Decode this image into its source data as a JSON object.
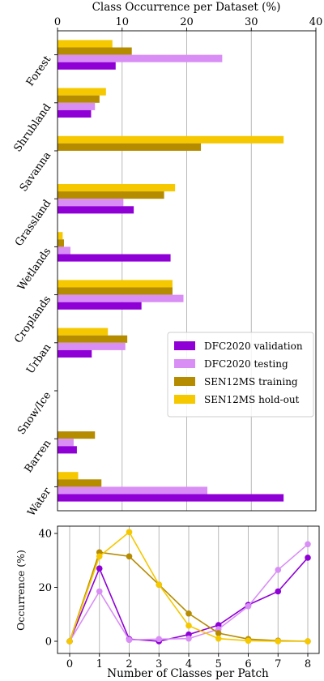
{
  "chart_data": [
    {
      "type": "bar",
      "orientation": "horizontal",
      "title": "",
      "xlabel": "Class Occurrence per Dataset (%)",
      "ylabel": "",
      "xlim": [
        0,
        40
      ],
      "xticks": [
        "0",
        "10",
        "20",
        "30",
        "40"
      ],
      "grid": "vertical",
      "legend_position": "center-right",
      "categories": [
        "Forest",
        "Shrubland",
        "Savanna",
        "Grassland",
        "Wetlands",
        "Croplands",
        "Urban",
        "Snow/Ice",
        "Barren",
        "Water"
      ],
      "series": [
        {
          "name": "SEN12MS hold-out",
          "color": "#f5c800",
          "values": [
            8.5,
            7.5,
            35.0,
            18.2,
            0.8,
            17.8,
            7.8,
            0,
            0,
            3.2
          ]
        },
        {
          "name": "SEN12MS training",
          "color": "#b58b00",
          "values": [
            11.5,
            6.5,
            22.2,
            16.5,
            1.0,
            17.8,
            10.8,
            0,
            5.8,
            6.8
          ]
        },
        {
          "name": "DFC2020 testing",
          "color": "#d98ef5",
          "values": [
            25.5,
            5.8,
            0,
            10.2,
            2.0,
            19.5,
            10.5,
            0,
            2.5,
            23.2
          ]
        },
        {
          "name": "DFC2020 validation",
          "color": "#8f00d6",
          "values": [
            9.0,
            5.2,
            0,
            11.8,
            17.5,
            13.0,
            5.3,
            0,
            3.0,
            35.0
          ]
        }
      ],
      "legend_order": [
        "DFC2020 validation",
        "DFC2020 testing",
        "SEN12MS training",
        "SEN12MS hold-out"
      ]
    },
    {
      "type": "line",
      "title": "",
      "xlabel": "Number of Classes per Patch",
      "ylabel": "Occurrence (%)",
      "xlim": [
        0,
        8
      ],
      "ylim": [
        0,
        40
      ],
      "xticks": [
        "0",
        "1",
        "2",
        "3",
        "4",
        "5",
        "6",
        "7",
        "8"
      ],
      "yticks": [
        "0",
        "20",
        "40"
      ],
      "grid": "vertical",
      "x": [
        0,
        1,
        2,
        3,
        4,
        5,
        6,
        7,
        8
      ],
      "series": [
        {
          "name": "DFC2020 validation",
          "color": "#8f00d6",
          "values": [
            0,
            27,
            0.8,
            0,
            2.5,
            6,
            13.5,
            18.5,
            31
          ]
        },
        {
          "name": "DFC2020 testing",
          "color": "#d98ef5",
          "values": [
            0,
            18.5,
            0.5,
            0.8,
            1,
            4.5,
            13,
            26.5,
            36
          ]
        },
        {
          "name": "SEN12MS training",
          "color": "#b58b00",
          "values": [
            0,
            33,
            31.5,
            21,
            10.3,
            3,
            0.8,
            0.2,
            0
          ]
        },
        {
          "name": "SEN12MS hold-out",
          "color": "#f5c800",
          "values": [
            0,
            31.5,
            40.5,
            21,
            5.8,
            1,
            0.2,
            0,
            0
          ]
        }
      ]
    }
  ]
}
